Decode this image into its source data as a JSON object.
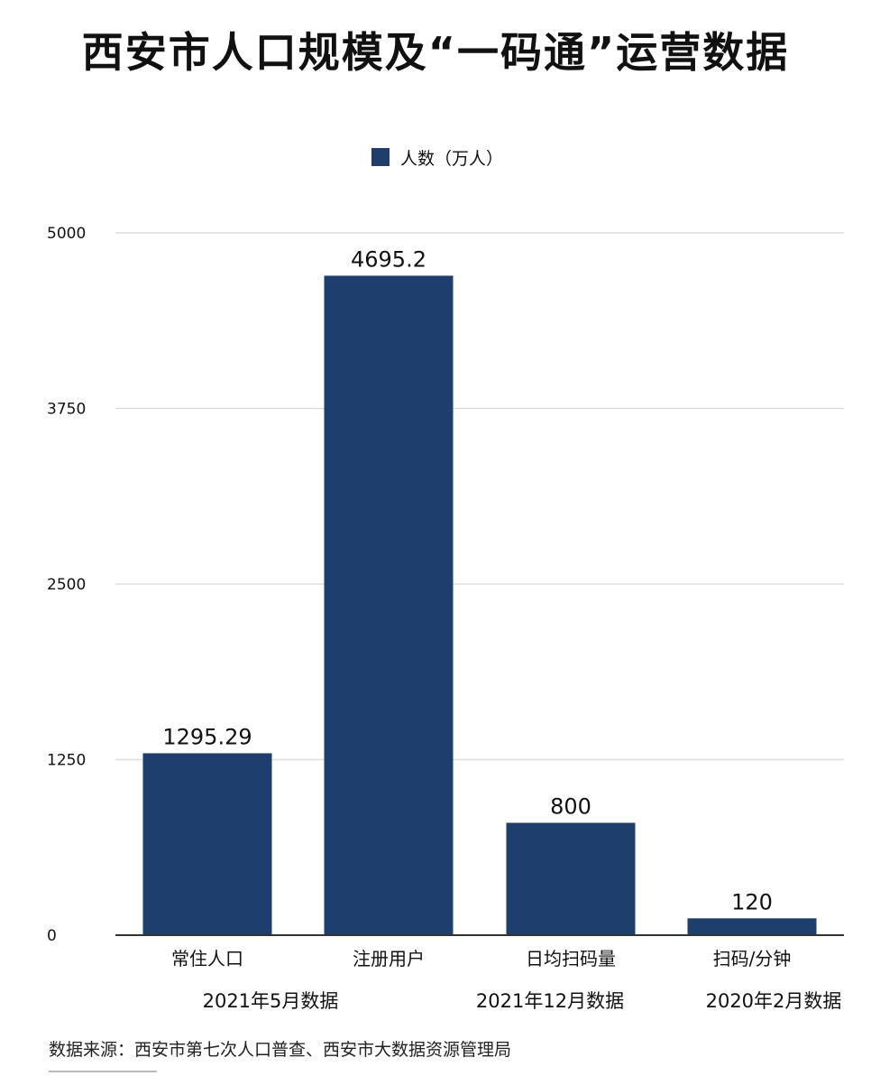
{
  "title": "西安市人口规模及“一码通”运营数据",
  "source_note": "数据来源：西安市第七次人口普查、西安市大数据资源管理局",
  "colors": {
    "bar": "#1e3e6e",
    "grid": "#dddddd",
    "axis": "#333333",
    "text": "#111111"
  },
  "chart_data": {
    "type": "bar",
    "title": "西安市人口规模及“一码通”运营数据",
    "categories": [
      "常住人口",
      "注册用户",
      "日均扫码量",
      "扫码/分钟"
    ],
    "group_labels": [
      "2021年5月数据",
      "2021年12月数据",
      "2020年2月数据"
    ],
    "series": [
      {
        "name": "人数（万人）",
        "values": [
          1295.29,
          4695.2,
          800,
          120
        ]
      }
    ],
    "data_labels": [
      "1295.29",
      "4695.2",
      "800",
      "120"
    ],
    "ylim": [
      0,
      5000
    ],
    "yticks": [
      "0",
      "1250",
      "2500",
      "3750",
      "5000"
    ],
    "grid": true,
    "legend": "top-center"
  }
}
